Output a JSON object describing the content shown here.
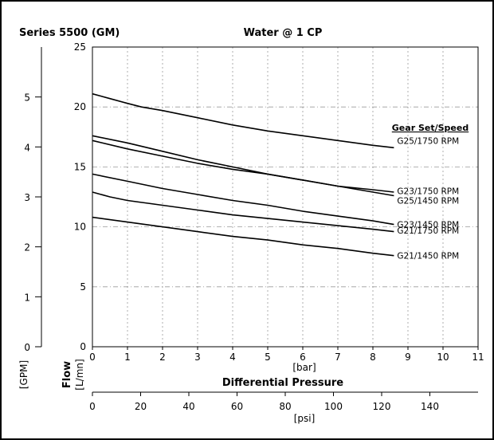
{
  "chart_data": {
    "type": "line",
    "series_label": "Series 5500 (GM)",
    "title": "Water @ 1 CP",
    "legend_title": "Gear Set/Speed",
    "x_axis_label": "[bar]",
    "x_title": "Differential Pressure",
    "x_secondary_label": "[psi]",
    "y_primary_label": "Flow",
    "y_primary_unit": "[L/mn]",
    "y_secondary_unit": "[GPM]",
    "xlim": [
      0,
      11
    ],
    "ylim": [
      0,
      25
    ],
    "gpm_lim": [
      0,
      6
    ],
    "psi_lim": [
      0,
      160
    ],
    "x_ticks": [
      "0",
      "1",
      "2",
      "3",
      "4",
      "5",
      "6",
      "7",
      "8",
      "9",
      "10",
      "11"
    ],
    "y_ticks": [
      "0",
      "5",
      "10",
      "15",
      "20",
      "25"
    ],
    "gpm_ticks": [
      "0",
      "1",
      "2",
      "3",
      "4",
      "5"
    ],
    "psi_ticks": [
      "0",
      "20",
      "40",
      "60",
      "80",
      "100",
      "120",
      "140"
    ],
    "grid": true,
    "series": [
      {
        "name": "G25/1750 RPM",
        "label_y": 17.2,
        "x": [
          0,
          0.5,
          1,
          1.4,
          2,
          3,
          4,
          5,
          6,
          7,
          8,
          8.6
        ],
        "y": [
          21.1,
          20.7,
          20.3,
          20.0,
          19.7,
          19.1,
          18.5,
          18.0,
          17.6,
          17.2,
          16.8,
          16.6
        ]
      },
      {
        "name": "G23/1750 RPM",
        "label_y": 13.0,
        "x": [
          0,
          1,
          2,
          3,
          4,
          5,
          6,
          7,
          8,
          8.6
        ],
        "y": [
          17.6,
          17.0,
          16.3,
          15.6,
          15.0,
          14.4,
          13.9,
          13.4,
          13.1,
          12.9
        ]
      },
      {
        "name": "G25/1450 RPM",
        "label_y": 12.2,
        "x": [
          0,
          1,
          2,
          3,
          4,
          5,
          6,
          7,
          8,
          8.6
        ],
        "y": [
          17.2,
          16.5,
          15.9,
          15.3,
          14.8,
          14.4,
          13.9,
          13.4,
          12.9,
          12.6
        ]
      },
      {
        "name": "G23/1450 RPM",
        "label_y": 10.2,
        "x": [
          0,
          1,
          2,
          3,
          4,
          5,
          6,
          7,
          8,
          8.6
        ],
        "y": [
          14.4,
          13.8,
          13.2,
          12.7,
          12.2,
          11.8,
          11.3,
          10.9,
          10.5,
          10.2
        ]
      },
      {
        "name": "G21/1750 RPM",
        "label_y": 9.7,
        "x": [
          0,
          0.5,
          1,
          1.5,
          2,
          3,
          4,
          5,
          6,
          7,
          8,
          8.6
        ],
        "y": [
          12.9,
          12.5,
          12.2,
          12.0,
          11.8,
          11.4,
          11.0,
          10.7,
          10.4,
          10.1,
          9.8,
          9.6
        ]
      },
      {
        "name": "G21/1450 RPM",
        "label_y": 7.6,
        "x": [
          0,
          1,
          2,
          3,
          4,
          5,
          6,
          7,
          8,
          8.6
        ],
        "y": [
          10.8,
          10.4,
          10.0,
          9.6,
          9.2,
          8.9,
          8.5,
          8.2,
          7.8,
          7.6
        ]
      }
    ]
  }
}
